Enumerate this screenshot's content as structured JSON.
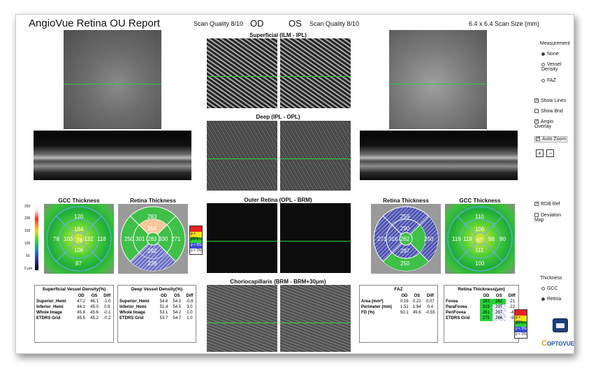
{
  "header": {
    "title": "AngioVue Retina OU Report",
    "scan_quality_od": "Scan Quality 8/10",
    "od": "OD",
    "os": "OS",
    "scan_quality_os": "Scan Quality 8/10",
    "scan_size": "6.4 x 6.4 Scan Size (mm)"
  },
  "sections": {
    "superficial": "Superficial (ILM - IPL)",
    "deep": "Deep (IPL - OPL)",
    "outer": "Outer Retina (OPL - BRM)",
    "chorio": "Choriocapillaris (BRM - BRM+30μm)"
  },
  "maps": {
    "gcc_left_title": "GCC Thickness",
    "retina_left_title": "Retina Thickness",
    "retina_right_title": "Retina Thickness",
    "gcc_right_title": "GCC Thickness",
    "gcc_left_values": [
      "120",
      "184",
      "78",
      "103",
      "74",
      "132",
      "118",
      "106",
      "87"
    ],
    "retina_left_values": [
      "283",
      "354",
      "250",
      "301",
      "283",
      "330",
      "271",
      "292",
      "239"
    ],
    "retina_right_values": [
      "259",
      "290",
      "271",
      "316",
      "262",
      "297",
      "250",
      "250",
      "297"
    ],
    "gcc_right_values": [
      "110",
      "106",
      "119",
      "119",
      "67",
      "98",
      "90",
      "111",
      "100"
    ],
    "scale_top": "250",
    "scale_200": "200",
    "scale_150": "150",
    "scale_100": "100",
    "scale_50": "50",
    "scale_bottom": "0 μm",
    "legend": [
      "p > 95%",
      "p > 5%",
      "p < 5%",
      "p < 1%"
    ],
    "watermark": "SOLIX"
  },
  "tables": {
    "superficial": {
      "title": "Superficial Vessel Density(%)",
      "cols": [
        "",
        "OD",
        "OS",
        "Diff"
      ],
      "rows": [
        [
          "Superior_Hemi",
          "47.2",
          "46.1",
          "-1.0"
        ],
        [
          "Inferior_Hemi",
          "44.1",
          "45.0",
          "0.9"
        ],
        [
          "Whole Image",
          "45.8",
          "45.6",
          "-0.1"
        ],
        [
          "ETDRS Grid",
          "45.5",
          "45.2",
          "-0.2"
        ]
      ]
    },
    "deep": {
      "title": "Deep Vessel Density(%)",
      "cols": [
        "",
        "OD",
        "OS",
        "Diff"
      ],
      "rows": [
        [
          "Superior_Hemi",
          "54.6",
          "54.0",
          "-0.6"
        ],
        [
          "Inferior_Hemi",
          "51.4",
          "54.5",
          "3.0"
        ],
        [
          "Whole Image",
          "53.1",
          "54.2",
          "1.0"
        ],
        [
          "ETDRS Grid",
          "53.7",
          "54.7",
          "1.0"
        ]
      ]
    },
    "faz": {
      "title": "FAZ",
      "cols": [
        "",
        "OD",
        "OS",
        "Diff"
      ],
      "rows": [
        [
          "Area (mm²)",
          "0.16",
          "0.22",
          "0.07"
        ],
        [
          "Perimeter (mm)",
          "1.51",
          "1.94",
          "0.4"
        ],
        [
          "FD (%)",
          "50.1",
          "49.6",
          "-0.55"
        ]
      ]
    },
    "retina": {
      "title": "Retina Thickness(μm)",
      "cols": [
        "",
        "OD",
        "OS",
        "Diff"
      ],
      "rows": [
        [
          "Fovea",
          "283",
          "262",
          "-21"
        ],
        [
          "ParaFovea",
          "319",
          "297",
          "-22"
        ],
        [
          "PeriFovea",
          "261",
          "257",
          "-4"
        ],
        [
          "ETDRS Grid",
          "275",
          "266",
          "-9"
        ]
      ]
    }
  },
  "sidebar": {
    "measurement_title": "Measurement",
    "measurement_options": [
      "None",
      "Vessel Density",
      "FAZ"
    ],
    "checks": [
      "Show Lines",
      "Show Bnd",
      "Angio Overlay",
      "Auto Zoom"
    ],
    "rdb_ref": "RDB Ref",
    "deviation_map": "Deviation Map",
    "thickness_title": "Thickness",
    "thickness_options": [
      "GCC",
      "Retina"
    ],
    "logo": "OPTOVUE"
  },
  "colors": {
    "green_pass": "#27c93f",
    "yellow_border": "#f2e21c",
    "red_fail": "#e02020",
    "blue": "#3b4bd8"
  }
}
